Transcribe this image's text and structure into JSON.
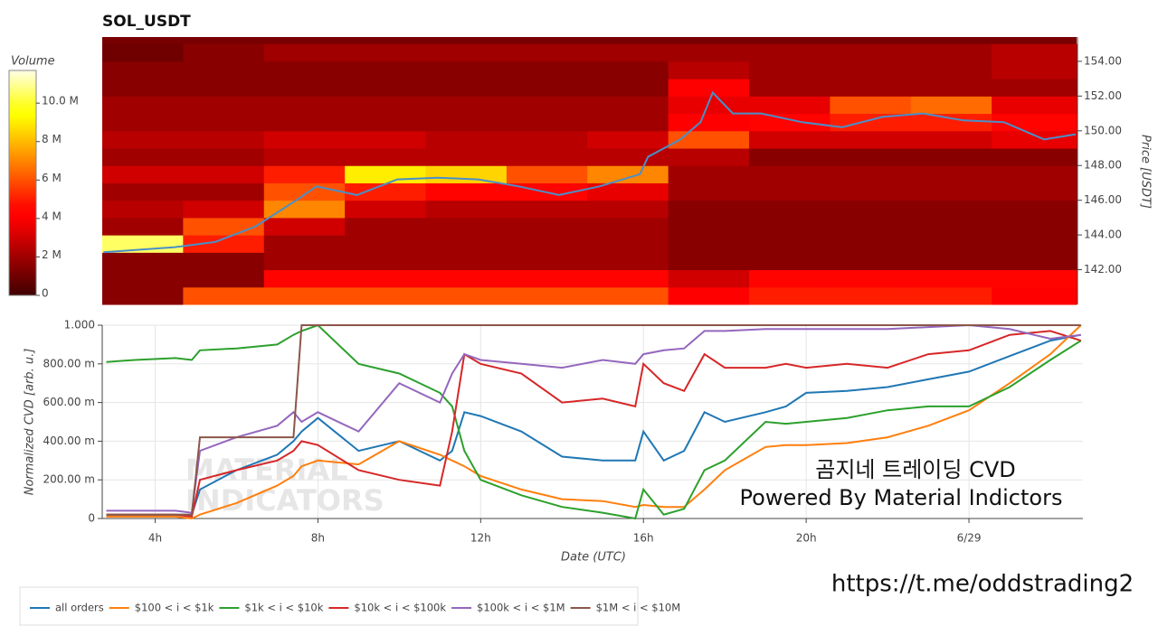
{
  "chart_data": [
    {
      "type": "heatmap",
      "title": "SOL_USDT",
      "y_label": "Price [USDT]",
      "xlim": [
        2.7,
        26.8
      ],
      "ylim": [
        140,
        155.4
      ],
      "yticks": [
        {
          "value": 142,
          "label": "142.00"
        },
        {
          "value": 144,
          "label": "144.00"
        },
        {
          "value": 146,
          "label": "146.00"
        },
        {
          "value": 148,
          "label": "148.00"
        },
        {
          "value": 150,
          "label": "150.00"
        },
        {
          "value": 152,
          "label": "152.00"
        },
        {
          "value": 154,
          "label": "154.00"
        }
      ],
      "x_bins": [
        2.7,
        4.7,
        6.7,
        8.7,
        10.7,
        12.7,
        14.7,
        16.7,
        18.7,
        20.7,
        22.7,
        24.7,
        26.8
      ],
      "y_bins": [
        140,
        141,
        142,
        143,
        144,
        145,
        146,
        147,
        148,
        149,
        150,
        151,
        152,
        153,
        154,
        155
      ],
      "values": [
        [
          1.5,
          6,
          6,
          6,
          6,
          6,
          6,
          4,
          5,
          5,
          5,
          4
        ],
        [
          1.5,
          1.5,
          4.5,
          4.5,
          4.5,
          4.5,
          4.5,
          3,
          4.5,
          4.5,
          4.5,
          4.5
        ],
        [
          1.5,
          1.5,
          2,
          2,
          2,
          2,
          2,
          1.5,
          1.5,
          1.5,
          1.5,
          1.5
        ],
        [
          10.5,
          5,
          2,
          2,
          2,
          2,
          2,
          1.5,
          1.5,
          1.5,
          1.5,
          1.5
        ],
        [
          2,
          6,
          3,
          2,
          2,
          2,
          2,
          1.5,
          1.5,
          1.5,
          1.5,
          1.5
        ],
        [
          2.5,
          3,
          7,
          3,
          2.5,
          2.5,
          2.5,
          1.5,
          1.5,
          1.5,
          1.5,
          1.5
        ],
        [
          2,
          2,
          6,
          5,
          4.5,
          4.5,
          3.5,
          2,
          2,
          2,
          2,
          2
        ],
        [
          3,
          3,
          5,
          9,
          8.5,
          6,
          7,
          2,
          2,
          2,
          2,
          2
        ],
        [
          2,
          2,
          2.5,
          2.5,
          2.5,
          2.5,
          2.5,
          2.5,
          1.5,
          1.5,
          1.5,
          1.5
        ],
        [
          2.5,
          2.5,
          3,
          3,
          2.5,
          2.5,
          3,
          6,
          3,
          3,
          3,
          3.5
        ],
        [
          2,
          2,
          2,
          2,
          2,
          2,
          2,
          4,
          4.5,
          5,
          5,
          4.5
        ],
        [
          2,
          2,
          2,
          2,
          2,
          2,
          2,
          3.5,
          3.5,
          6,
          6.5,
          3.5
        ],
        [
          1.5,
          1.5,
          1.5,
          1.5,
          1.5,
          1.5,
          1.5,
          4,
          2,
          2,
          2,
          2
        ],
        [
          1.5,
          1.5,
          1.5,
          1.5,
          1.5,
          1.5,
          1.5,
          2.5,
          2,
          2,
          2,
          2.5
        ],
        [
          1,
          1.5,
          2,
          2,
          2,
          2,
          2,
          2,
          2,
          2,
          2,
          2.5
        ]
      ],
      "colorbar": {
        "label": "Volume",
        "lim": [
          0,
          11.7
        ],
        "ticks": [
          0,
          {
            "value": 2,
            "label": "2 M"
          },
          {
            "value": 4,
            "label": "4 M"
          },
          {
            "value": 6,
            "label": "6 M"
          },
          {
            "value": 8,
            "label": "8 M"
          },
          {
            "value": 10,
            "label": "10.0 M"
          }
        ]
      },
      "price": {
        "color": "#4a8fc9",
        "x": [
          2.73,
          4.5,
          5.5,
          6.5,
          7.5,
          8,
          9,
          10,
          11,
          12,
          13,
          14,
          15,
          16,
          16.2,
          17,
          17.5,
          17.8,
          18.3,
          19,
          20,
          21,
          22,
          23,
          24,
          25,
          26,
          26.78
        ],
        "values": [
          143.0,
          143.3,
          143.6,
          144.5,
          146.0,
          146.8,
          146.3,
          147.2,
          147.3,
          147.2,
          146.8,
          146.3,
          146.8,
          147.5,
          148.5,
          149.5,
          150.5,
          152.2,
          151.0,
          151.0,
          150.5,
          150.2,
          150.8,
          151.0,
          150.6,
          150.5,
          149.5,
          149.8
        ]
      }
    },
    {
      "type": "line",
      "y_label": "Normalized CVD [arb. u.]",
      "x_label": "Date (UTC)",
      "grid": true,
      "legend": "bottom-left",
      "xlim": [
        2.7,
        26.8
      ],
      "ylim": [
        0,
        1
      ],
      "xticks": [
        {
          "value": 4,
          "label": "4h"
        },
        {
          "value": 8,
          "label": "8h"
        },
        {
          "value": 12,
          "label": "12h"
        },
        {
          "value": 16,
          "label": "16h"
        },
        {
          "value": 20,
          "label": "20h"
        },
        {
          "value": 24,
          "label": "6/29"
        }
      ],
      "yticks": [
        0,
        {
          "value": 0.2,
          "label": "200.00 m"
        },
        {
          "value": 0.4,
          "label": "400.00 m"
        },
        {
          "value": 0.6,
          "label": "600.00 m"
        },
        {
          "value": 0.8,
          "label": "800.00 m"
        },
        {
          "value": 1,
          "label": "1.000"
        }
      ],
      "x": [
        2.8,
        3.5,
        4.5,
        4.9,
        5.1,
        6,
        7,
        7.4,
        7.6,
        8,
        9,
        10,
        11,
        11.3,
        11.6,
        12,
        13,
        14,
        15,
        15.8,
        16,
        16.5,
        17,
        17.5,
        18,
        19,
        19.5,
        20,
        21,
        22,
        23,
        24,
        25,
        26,
        26.75
      ],
      "series": [
        {
          "name": "all orders",
          "color": "#1f77b4",
          "values": [
            0.02,
            0.02,
            0.02,
            0.02,
            0.15,
            0.25,
            0.33,
            0.4,
            0.45,
            0.52,
            0.35,
            0.4,
            0.3,
            0.35,
            0.55,
            0.53,
            0.45,
            0.32,
            0.3,
            0.3,
            0.45,
            0.3,
            0.35,
            0.55,
            0.5,
            0.55,
            0.58,
            0.65,
            0.66,
            0.68,
            0.72,
            0.76,
            0.84,
            0.92,
            0.95
          ]
        },
        {
          "name": "$100 < i < $1k",
          "color": "#ff7f0e",
          "values": [
            0.01,
            0.01,
            0.01,
            0.0,
            0.02,
            0.08,
            0.17,
            0.22,
            0.27,
            0.3,
            0.28,
            0.4,
            0.33,
            0.3,
            0.27,
            0.22,
            0.15,
            0.1,
            0.09,
            0.06,
            0.07,
            0.06,
            0.06,
            0.15,
            0.25,
            0.37,
            0.38,
            0.38,
            0.39,
            0.42,
            0.48,
            0.56,
            0.7,
            0.85,
            1.0
          ]
        },
        {
          "name": "$1k < i < $10k",
          "color": "#2ca02c",
          "values": [
            0.81,
            0.82,
            0.83,
            0.82,
            0.87,
            0.88,
            0.9,
            0.95,
            0.97,
            1.0,
            0.8,
            0.75,
            0.65,
            0.58,
            0.35,
            0.2,
            0.12,
            0.06,
            0.03,
            0.0,
            0.15,
            0.02,
            0.05,
            0.25,
            0.3,
            0.5,
            0.49,
            0.5,
            0.52,
            0.56,
            0.58,
            0.58,
            0.68,
            0.82,
            0.92
          ]
        },
        {
          "name": "$10k < i < $100k",
          "color": "#d62728",
          "values": [
            0.02,
            0.02,
            0.02,
            0.01,
            0.2,
            0.25,
            0.3,
            0.35,
            0.4,
            0.38,
            0.25,
            0.2,
            0.17,
            0.45,
            0.85,
            0.8,
            0.75,
            0.6,
            0.62,
            0.58,
            0.8,
            0.7,
            0.66,
            0.85,
            0.78,
            0.78,
            0.8,
            0.78,
            0.8,
            0.78,
            0.85,
            0.87,
            0.95,
            0.97,
            0.92
          ]
        },
        {
          "name": "$100k < i < $1M",
          "color": "#9467bd",
          "values": [
            0.04,
            0.04,
            0.04,
            0.03,
            0.35,
            0.42,
            0.48,
            0.55,
            0.5,
            0.55,
            0.45,
            0.7,
            0.6,
            0.75,
            0.85,
            0.82,
            0.8,
            0.78,
            0.82,
            0.8,
            0.85,
            0.87,
            0.88,
            0.97,
            0.97,
            0.98,
            0.98,
            0.98,
            0.98,
            0.98,
            0.99,
            1.0,
            0.98,
            0.93,
            0.95
          ]
        },
        {
          "name": "$1M < i < $10M",
          "color": "#8c564b",
          "values": [
            0.02,
            0.02,
            0.02,
            0.02,
            0.42,
            0.42,
            0.42,
            0.42,
            1.0,
            1.0,
            1.0,
            1.0,
            1.0,
            1.0,
            1.0,
            1.0,
            1.0,
            1.0,
            1.0,
            1.0,
            1.0,
            1.0,
            1.0,
            1.0,
            1.0,
            1.0,
            1.0,
            1.0,
            1.0,
            1.0,
            1.0,
            1.0,
            1.0,
            1.0,
            1.0
          ]
        }
      ],
      "annotations": [
        "곰지네 트레이딩 CVD",
        "Powered By Material Indictors"
      ],
      "watermark": [
        "MATERIAL",
        "INDICATORS"
      ]
    }
  ],
  "footer_text": "https://t.me/oddstrading2"
}
